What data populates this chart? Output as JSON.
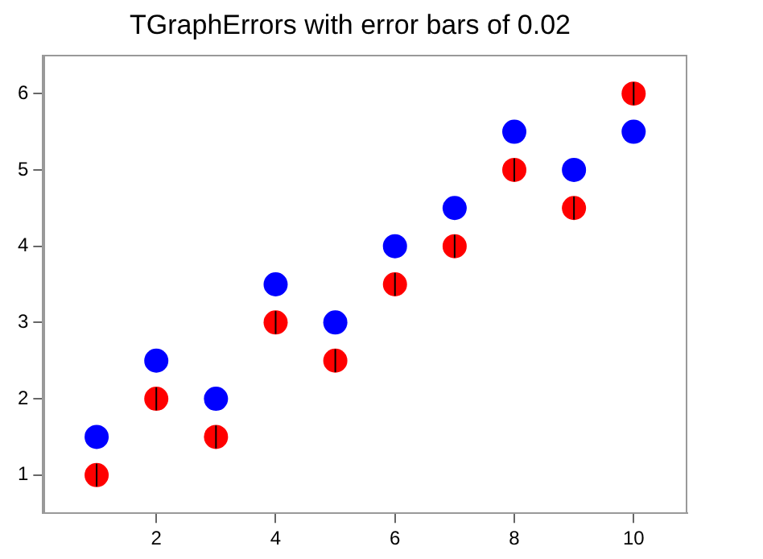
{
  "chart_data": {
    "type": "scatter",
    "title": "TGraphErrors with error bars of 0.02",
    "xlim": [
      0.1,
      10.9
    ],
    "xticks": [
      2,
      4,
      6,
      8,
      10
    ],
    "ylim": [
      0.5,
      6.5
    ],
    "yticks": [
      1,
      2,
      3,
      4,
      5,
      6
    ],
    "grid": false,
    "legend": false,
    "marker": "circle",
    "series": [
      {
        "color": "#0000ff",
        "x": [
          1,
          2,
          3,
          4,
          5,
          6,
          7,
          8,
          9,
          10
        ],
        "values": [
          1.5,
          2.5,
          2,
          3.5,
          3,
          4,
          4.5,
          5.5,
          5,
          5.5
        ]
      },
      {
        "color": "#ff0000",
        "x": [
          1,
          2,
          3,
          4,
          5,
          6,
          7,
          8,
          9,
          10
        ],
        "values": [
          1,
          2,
          1.5,
          3,
          2.5,
          3.5,
          4,
          5,
          4.5,
          6
        ],
        "errors": [
          0.15,
          0.15,
          0.15,
          0.15,
          0.15,
          0.15,
          0.15,
          0.15,
          0.15,
          0.15
        ]
      }
    ]
  }
}
